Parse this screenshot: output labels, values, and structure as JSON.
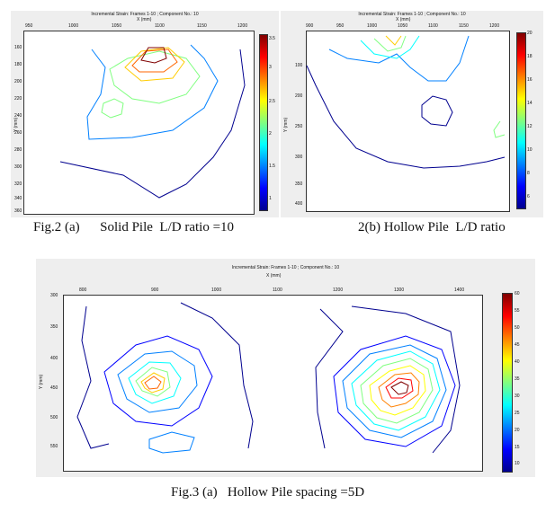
{
  "figures": [
    {
      "id": "fig2a",
      "title": "Incremental Strain: Frames 1-10 ; Component No.: 10",
      "xlabel": "X (mm)",
      "ylabel": "Y (mm)",
      "xticks": [
        "950",
        "1000",
        "1050",
        "1100",
        "1150",
        "1200"
      ],
      "yticks": [
        "160",
        "180",
        "200",
        "220",
        "240",
        "260",
        "280",
        "300",
        "320",
        "340",
        "360"
      ],
      "cbticks": [
        "3.5",
        "3",
        "2.5",
        "2",
        "1.5",
        "1"
      ],
      "colors": [
        "#00008f",
        "#0000ff",
        "#0080ff",
        "#00ffff",
        "#80ff80",
        "#ffff00",
        "#ff8000",
        "#ff0000",
        "#800000"
      ]
    },
    {
      "id": "fig2b",
      "title": "Incremental Strain: Frames 1-10 ; Component No.: 10",
      "xlabel": "X (mm)",
      "ylabel": "Y (mm)",
      "xticks": [
        "900",
        "950",
        "1000",
        "1050",
        "1100",
        "1150",
        "1200"
      ],
      "yticks": [
        "100",
        "200",
        "250",
        "300",
        "350",
        "400"
      ],
      "cbticks": [
        "20",
        "18",
        "16",
        "14",
        "12",
        "10",
        "8",
        "6"
      ],
      "colors": [
        "#00008f",
        "#0000ff",
        "#0080ff",
        "#00ffff",
        "#80ff80",
        "#ffff00",
        "#ff8000",
        "#ff0000",
        "#800000"
      ]
    },
    {
      "id": "fig3a",
      "title": "Incremental Strain: Frames 1-10 ; Component No.: 10",
      "xlabel": "X (mm)",
      "ylabel": "Y (mm)",
      "xticks": [
        "800",
        "900",
        "1000",
        "1100",
        "1200",
        "1300",
        "1400"
      ],
      "yticks": [
        "300",
        "350",
        "400",
        "450",
        "500",
        "550"
      ],
      "cbticks": [
        "60",
        "55",
        "50",
        "45",
        "40",
        "35",
        "30",
        "25",
        "20",
        "15",
        "10"
      ],
      "colors": [
        "#00008f",
        "#0000ff",
        "#0080ff",
        "#00ffff",
        "#80ff80",
        "#ffff00",
        "#ff8000",
        "#ff0000",
        "#800000"
      ]
    }
  ],
  "captions": {
    "fig2a": "Fig.2 (a)      Solid Pile  L/D ratio =10",
    "fig2b": "2(b) Hollow Pile  L/D ratio",
    "fig3a": "Fig.3 (a)   Hollow Pile spacing =5D"
  }
}
